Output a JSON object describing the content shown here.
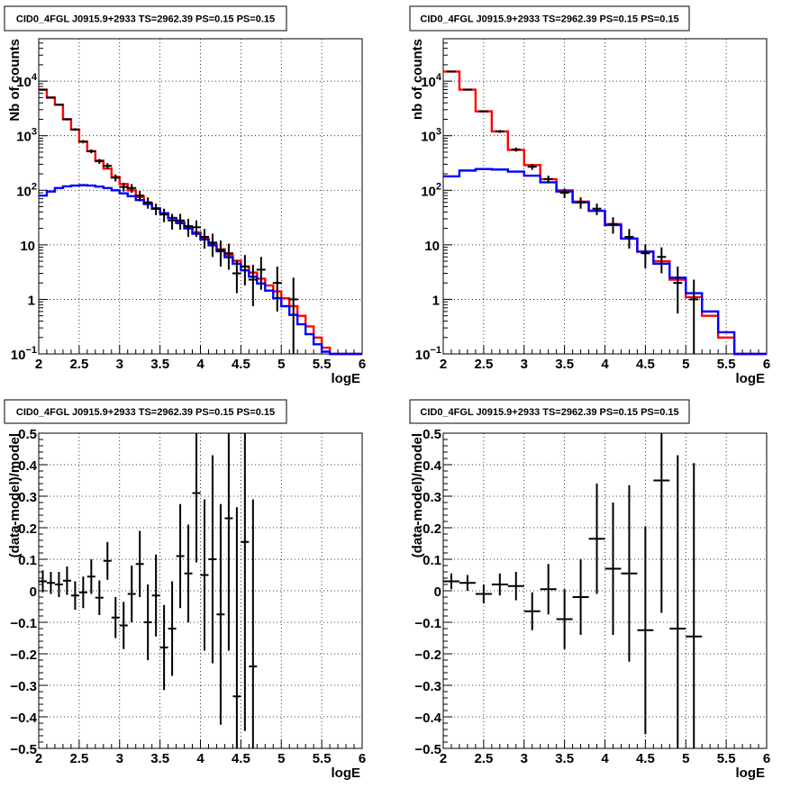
{
  "panels": [
    {
      "id": "tl",
      "title": "CID0_4FGL J0915.9+2933 TS=2962.39 PS=0.15 PS=0.15",
      "xlabel": "logE",
      "ylabel": "Nb of counts",
      "chart_data": {
        "type": "line",
        "ylog": true,
        "xlim": [
          2,
          6
        ],
        "ylim": [
          0.1,
          60000
        ],
        "grid": true,
        "xticks": [
          "2",
          "2.5",
          "3",
          "3.5",
          "4",
          "4.5",
          "5",
          "5.5",
          "6"
        ],
        "yticks": [
          {
            "v": 0.1,
            "base": "10",
            "exp": "−1"
          },
          {
            "v": 1,
            "base": "1",
            "exp": ""
          },
          {
            "v": 10,
            "base": "10",
            "exp": ""
          },
          {
            "v": 100,
            "base": "10",
            "exp": "2"
          },
          {
            "v": 1000,
            "base": "10",
            "exp": "3"
          },
          {
            "v": 10000,
            "base": "10",
            "exp": "4"
          }
        ],
        "series": [
          {
            "color": "#ff0000",
            "edges": [
              2.0,
              2.1,
              2.2,
              2.3,
              2.4,
              2.5,
              2.6,
              2.7,
              2.8,
              2.9,
              3.0,
              3.1,
              3.2,
              3.3,
              3.4,
              3.5,
              3.6,
              3.7,
              3.8,
              3.9,
              4.0,
              4.1,
              4.2,
              4.3,
              4.4,
              4.5,
              4.6,
              4.7,
              4.8,
              4.9,
              5.0,
              5.1,
              5.2,
              5.3,
              5.4,
              5.5,
              5.6,
              5.7,
              5.8,
              5.9,
              6.0
            ],
            "values": [
              7000,
              5000,
              3700,
              2000,
              1300,
              780,
              520,
              350,
              250,
              175,
              130,
              100,
              75,
              58,
              47,
              38,
              31,
              26,
              21,
              17,
              13,
              10.5,
              8.3,
              6.5,
              5.1,
              4.0,
              3.1,
              2.4,
              1.8,
              1.4,
              1.05,
              0.75,
              0.5,
              0.32,
              0.2,
              0.13,
              0.1,
              0.1,
              0.1,
              0.1
            ]
          },
          {
            "color": "#0000ff",
            "edges": [
              2.0,
              2.1,
              2.2,
              2.3,
              2.4,
              2.5,
              2.6,
              2.7,
              2.8,
              2.9,
              3.0,
              3.1,
              3.2,
              3.3,
              3.4,
              3.5,
              3.6,
              3.7,
              3.8,
              3.9,
              4.0,
              4.1,
              4.2,
              4.3,
              4.4,
              4.5,
              4.6,
              4.7,
              4.8,
              4.9,
              5.0,
              5.1,
              5.2,
              5.3,
              5.4,
              5.5,
              5.6,
              5.7,
              5.8,
              5.9,
              6.0
            ],
            "values": [
              80,
              95,
              110,
              118,
              122,
              124,
              122,
              117,
              110,
              100,
              88,
              78,
              66,
              56,
              46,
              38,
              31,
              25,
              20,
              16,
              12.5,
              9.8,
              7.6,
              5.9,
              4.5,
              3.4,
              2.6,
              1.95,
              1.45,
              1.05,
              0.75,
              0.52,
              0.35,
              0.23,
              0.15,
              0.11,
              0.1,
              0.1,
              0.1,
              0.1
            ]
          }
        ],
        "points": [
          {
            "x": 2.05,
            "y": 7000,
            "lo": 6800,
            "hi": 7200
          },
          {
            "x": 2.15,
            "y": 5000,
            "lo": 4850,
            "hi": 5150
          },
          {
            "x": 2.25,
            "y": 3700,
            "lo": 3580,
            "hi": 3820
          },
          {
            "x": 2.35,
            "y": 2000,
            "lo": 1910,
            "hi": 2090
          },
          {
            "x": 2.45,
            "y": 1300,
            "lo": 1230,
            "hi": 1370
          },
          {
            "x": 2.55,
            "y": 780,
            "lo": 725,
            "hi": 835
          },
          {
            "x": 2.65,
            "y": 520,
            "lo": 477,
            "hi": 563
          },
          {
            "x": 2.75,
            "y": 340,
            "lo": 305,
            "hi": 375
          },
          {
            "x": 2.85,
            "y": 280,
            "lo": 247,
            "hi": 313
          },
          {
            "x": 2.95,
            "y": 170,
            "lo": 145,
            "hi": 195
          },
          {
            "x": 3.05,
            "y": 115,
            "lo": 95,
            "hi": 135
          },
          {
            "x": 3.15,
            "y": 110,
            "lo": 90,
            "hi": 130
          },
          {
            "x": 3.25,
            "y": 80,
            "lo": 63,
            "hi": 97
          },
          {
            "x": 3.35,
            "y": 60,
            "lo": 46,
            "hi": 74
          },
          {
            "x": 3.45,
            "y": 46,
            "lo": 35,
            "hi": 57
          },
          {
            "x": 3.55,
            "y": 36,
            "lo": 26,
            "hi": 46
          },
          {
            "x": 3.65,
            "y": 28,
            "lo": 19,
            "hi": 37
          },
          {
            "x": 3.75,
            "y": 28,
            "lo": 19,
            "hi": 37
          },
          {
            "x": 3.85,
            "y": 22,
            "lo": 14,
            "hi": 30
          },
          {
            "x": 3.95,
            "y": 21,
            "lo": 14,
            "hi": 28
          },
          {
            "x": 4.05,
            "y": 14,
            "lo": 8.5,
            "hi": 19.5
          },
          {
            "x": 4.15,
            "y": 11,
            "lo": 6,
            "hi": 16
          },
          {
            "x": 4.25,
            "y": 8,
            "lo": 4,
            "hi": 12
          },
          {
            "x": 4.35,
            "y": 7,
            "lo": 3.5,
            "hi": 10.5
          },
          {
            "x": 4.45,
            "y": 3,
            "lo": 1.3,
            "hi": 5.2
          },
          {
            "x": 4.55,
            "y": 4,
            "lo": 1.8,
            "hi": 6.5
          },
          {
            "x": 4.65,
            "y": 2.3,
            "lo": 0.75,
            "hi": 4.3
          },
          {
            "x": 4.75,
            "y": 3.5,
            "lo": 1.5,
            "hi": 6
          },
          {
            "x": 4.95,
            "y": 2,
            "lo": 0.6,
            "hi": 4
          },
          {
            "x": 5.15,
            "y": 1,
            "lo": 0.1,
            "hi": 2.5
          }
        ]
      }
    },
    {
      "id": "tr",
      "title": "CID0_4FGL J0915.9+2933 TS=2962.39 PS=0.15 PS=0.15",
      "xlabel": "logE",
      "ylabel": "nb of counts",
      "chart_data": {
        "type": "line",
        "ylog": true,
        "xlim": [
          2,
          6
        ],
        "ylim": [
          0.1,
          60000
        ],
        "grid": true,
        "xticks": [
          "2",
          "2.5",
          "3",
          "3.5",
          "4",
          "4.5",
          "5",
          "5.5",
          "6"
        ],
        "yticks": [
          {
            "v": 0.1,
            "base": "10",
            "exp": "−1"
          },
          {
            "v": 1,
            "base": "1",
            "exp": ""
          },
          {
            "v": 10,
            "base": "10",
            "exp": ""
          },
          {
            "v": 100,
            "base": "10",
            "exp": "2"
          },
          {
            "v": 1000,
            "base": "10",
            "exp": "3"
          },
          {
            "v": 10000,
            "base": "10",
            "exp": "4"
          }
        ],
        "series": [
          {
            "color": "#ff0000",
            "edges": [
              2.0,
              2.2,
              2.4,
              2.6,
              2.8,
              3.0,
              3.2,
              3.4,
              3.6,
              3.8,
              4.0,
              4.2,
              4.4,
              4.6,
              4.8,
              5.0,
              5.2,
              5.4,
              5.6,
              5.8,
              6.0
            ],
            "values": [
              15000,
              7000,
              2800,
              1200,
              550,
              290,
              160,
              100,
              62,
              42,
              24,
              13,
              7.5,
              5,
              2.3,
              1.1,
              0.5,
              0.2,
              0.1,
              0.1
            ]
          },
          {
            "color": "#0000ff",
            "edges": [
              2.0,
              2.2,
              2.4,
              2.6,
              2.8,
              3.0,
              3.2,
              3.4,
              3.6,
              3.8,
              4.0,
              4.2,
              4.4,
              4.6,
              4.8,
              5.0,
              5.2,
              5.4,
              5.6,
              5.8,
              6.0
            ],
            "values": [
              180,
              230,
              245,
              240,
              220,
              185,
              140,
              95,
              60,
              42,
              23,
              13,
              7.5,
              4.5,
              2.5,
              1.3,
              0.6,
              0.25,
              0.1,
              0.1
            ]
          }
        ],
        "points": [
          {
            "x": 2.1,
            "y": 15000,
            "lo": 14700,
            "hi": 15300
          },
          {
            "x": 2.3,
            "y": 7000,
            "lo": 6830,
            "hi": 7170
          },
          {
            "x": 2.5,
            "y": 2800,
            "lo": 2690,
            "hi": 2910
          },
          {
            "x": 2.7,
            "y": 1200,
            "lo": 1130,
            "hi": 1270
          },
          {
            "x": 2.9,
            "y": 560,
            "lo": 512,
            "hi": 608
          },
          {
            "x": 3.1,
            "y": 270,
            "lo": 237,
            "hi": 303
          },
          {
            "x": 3.3,
            "y": 160,
            "lo": 135,
            "hi": 185
          },
          {
            "x": 3.5,
            "y": 90,
            "lo": 72,
            "hi": 108
          },
          {
            "x": 3.7,
            "y": 60,
            "lo": 46,
            "hi": 74
          },
          {
            "x": 3.9,
            "y": 46,
            "lo": 35,
            "hi": 57
          },
          {
            "x": 4.1,
            "y": 24,
            "lo": 16,
            "hi": 32
          },
          {
            "x": 4.3,
            "y": 14,
            "lo": 8.5,
            "hi": 19.5
          },
          {
            "x": 4.5,
            "y": 7,
            "lo": 3.7,
            "hi": 10.3
          },
          {
            "x": 4.7,
            "y": 6,
            "lo": 3,
            "hi": 9
          },
          {
            "x": 4.9,
            "y": 2,
            "lo": 0.55,
            "hi": 4
          },
          {
            "x": 5.1,
            "y": 1,
            "lo": 0.1,
            "hi": 2.3
          }
        ]
      }
    },
    {
      "id": "bl",
      "title": "CID0_4FGL J0915.9+2933 TS=2962.39 PS=0.15 PS=0.15",
      "xlabel": "logE",
      "ylabel": "(data-model)/model",
      "chart_data": {
        "type": "scatter",
        "ylog": false,
        "xlim": [
          2,
          6
        ],
        "ylim": [
          -0.5,
          0.5
        ],
        "grid": true,
        "xticks": [
          "2",
          "2.5",
          "3",
          "3.5",
          "4",
          "4.5",
          "5",
          "5.5",
          "6"
        ],
        "yticks": [
          {
            "v": -0.5,
            "label": "−0.5"
          },
          {
            "v": -0.4,
            "label": "−0.4"
          },
          {
            "v": -0.3,
            "label": "−0.3"
          },
          {
            "v": -0.2,
            "label": "−0.2"
          },
          {
            "v": -0.1,
            "label": "−0.1"
          },
          {
            "v": 0,
            "label": "0"
          },
          {
            "v": 0.1,
            "label": "0.1"
          },
          {
            "v": 0.2,
            "label": "0.2"
          },
          {
            "v": 0.3,
            "label": "0.3"
          },
          {
            "v": 0.4,
            "label": "0.4"
          },
          {
            "v": 0.5,
            "label": "0.5"
          }
        ],
        "xhalf": 0.05,
        "points": [
          {
            "x": 2.05,
            "y": 0.03,
            "err": 0.035
          },
          {
            "x": 2.15,
            "y": 0.025,
            "err": 0.035
          },
          {
            "x": 2.25,
            "y": 0.02,
            "err": 0.04
          },
          {
            "x": 2.35,
            "y": 0.032,
            "err": 0.045
          },
          {
            "x": 2.45,
            "y": -0.015,
            "err": 0.045
          },
          {
            "x": 2.55,
            "y": -0.005,
            "err": 0.05
          },
          {
            "x": 2.65,
            "y": 0.045,
            "err": 0.055
          },
          {
            "x": 2.75,
            "y": -0.022,
            "err": 0.055
          },
          {
            "x": 2.85,
            "y": 0.095,
            "err": 0.06
          },
          {
            "x": 2.95,
            "y": -0.085,
            "err": 0.065
          },
          {
            "x": 3.05,
            "y": -0.11,
            "err": 0.075
          },
          {
            "x": 3.15,
            "y": -0.01,
            "err": 0.09
          },
          {
            "x": 3.25,
            "y": 0.085,
            "err": 0.105
          },
          {
            "x": 3.35,
            "y": -0.1,
            "err": 0.12
          },
          {
            "x": 3.45,
            "y": -0.015,
            "err": 0.13
          },
          {
            "x": 3.55,
            "y": -0.18,
            "err": 0.135
          },
          {
            "x": 3.65,
            "y": -0.12,
            "err": 0.15
          },
          {
            "x": 3.75,
            "y": 0.11,
            "err": 0.165
          },
          {
            "x": 3.85,
            "y": 0.055,
            "err": 0.155
          },
          {
            "x": 3.95,
            "y": 0.31,
            "err": 0.22
          },
          {
            "x": 4.05,
            "y": 0.05,
            "err": 0.24
          },
          {
            "x": 4.15,
            "y": 0.1,
            "err": 0.33
          },
          {
            "x": 4.25,
            "y": -0.075,
            "err": 0.35
          },
          {
            "x": 4.35,
            "y": 0.23,
            "err": 0.42
          },
          {
            "x": 4.45,
            "y": -0.335,
            "err": 0.6
          },
          {
            "x": 4.55,
            "y": 0.155,
            "err": 0.6
          },
          {
            "x": 4.65,
            "y": -0.24,
            "err": 0.53
          }
        ]
      }
    },
    {
      "id": "br",
      "title": "CID0_4FGL J0915.9+2933 TS=2962.39 PS=0.15 PS=0.15",
      "xlabel": "logE",
      "ylabel": "(data-model)/model",
      "chart_data": {
        "type": "scatter",
        "ylog": false,
        "xlim": [
          2,
          6
        ],
        "ylim": [
          -0.5,
          0.5
        ],
        "grid": true,
        "xticks": [
          "2",
          "2.5",
          "3",
          "3.5",
          "4",
          "4.5",
          "5",
          "5.5",
          "6"
        ],
        "yticks": [
          {
            "v": -0.5,
            "label": "−0.5"
          },
          {
            "v": -0.4,
            "label": "−0.4"
          },
          {
            "v": -0.3,
            "label": "−0.3"
          },
          {
            "v": -0.2,
            "label": "−0.2"
          },
          {
            "v": -0.1,
            "label": "−0.1"
          },
          {
            "v": 0,
            "label": "0"
          },
          {
            "v": 0.1,
            "label": "0.1"
          },
          {
            "v": 0.2,
            "label": "0.2"
          },
          {
            "v": 0.3,
            "label": "0.3"
          },
          {
            "v": 0.4,
            "label": "0.4"
          },
          {
            "v": 0.5,
            "label": "0.5"
          }
        ],
        "xhalf": 0.1,
        "points": [
          {
            "x": 2.1,
            "y": 0.03,
            "err": 0.025
          },
          {
            "x": 2.3,
            "y": 0.025,
            "err": 0.025
          },
          {
            "x": 2.5,
            "y": -0.01,
            "err": 0.03
          },
          {
            "x": 2.7,
            "y": 0.02,
            "err": 0.035
          },
          {
            "x": 2.9,
            "y": 0.015,
            "err": 0.045
          },
          {
            "x": 3.1,
            "y": -0.065,
            "err": 0.06
          },
          {
            "x": 3.3,
            "y": 0.005,
            "err": 0.08
          },
          {
            "x": 3.5,
            "y": -0.09,
            "err": 0.095
          },
          {
            "x": 3.7,
            "y": -0.02,
            "err": 0.12
          },
          {
            "x": 3.9,
            "y": 0.165,
            "err": 0.175
          },
          {
            "x": 4.1,
            "y": 0.07,
            "err": 0.21
          },
          {
            "x": 4.3,
            "y": 0.055,
            "err": 0.28
          },
          {
            "x": 4.5,
            "y": -0.125,
            "err": 0.33
          },
          {
            "x": 4.7,
            "y": 0.35,
            "err": 0.42
          },
          {
            "x": 4.9,
            "y": -0.12,
            "err": 0.55
          },
          {
            "x": 5.1,
            "y": -0.145,
            "err": 0.55
          }
        ]
      }
    }
  ]
}
